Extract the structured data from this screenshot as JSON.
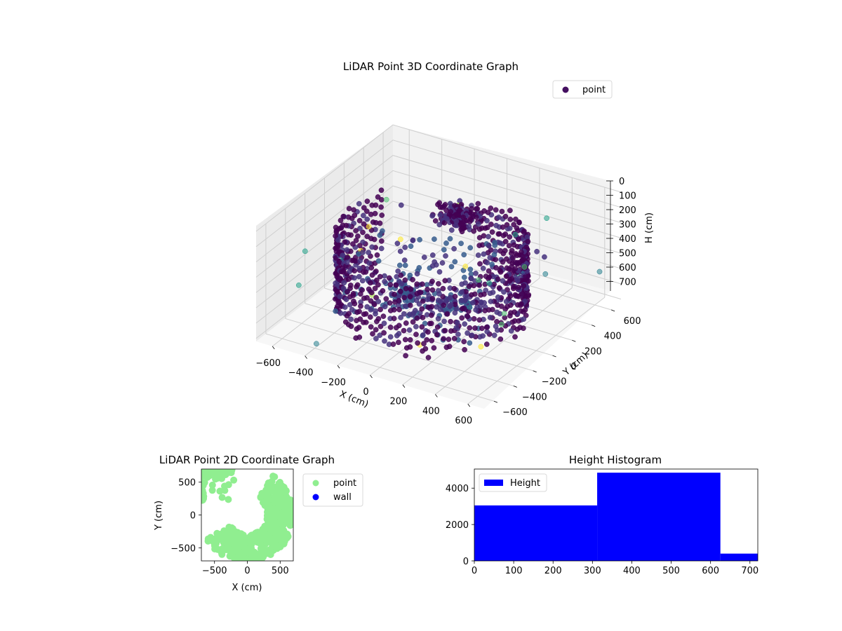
{
  "chart_data": [
    {
      "type": "scatter3d",
      "title": "LiDAR Point 3D Coordinate Graph",
      "xlabel": "X (cm)",
      "ylabel": "Y (cm)",
      "zlabel": "H (cm)",
      "xlim": [
        -700,
        700
      ],
      "ylim": [
        -700,
        700
      ],
      "zlim": [
        0,
        720
      ],
      "z_inverted": true,
      "xticks": [
        "−600",
        "−400",
        "−200",
        "0",
        "200",
        "400",
        "600"
      ],
      "yticks": [
        "−600",
        "−400",
        "−200",
        "0",
        "200",
        "400",
        "600"
      ],
      "zticks": [
        "0",
        "100",
        "200",
        "300",
        "400",
        "500",
        "600",
        "700"
      ],
      "legend": {
        "placement": "upper-right",
        "entries": [
          {
            "name": "point",
            "color": "#440f60"
          }
        ]
      },
      "colormap": "viridis",
      "grid": true
    },
    {
      "type": "scatter",
      "title": "LiDAR Point 2D Coordinate Graph",
      "xlabel": "X (cm)",
      "ylabel": "Y (cm)",
      "xlim": [
        -700,
        700
      ],
      "ylim": [
        -700,
        700
      ],
      "xticks": [
        "−500",
        "0",
        "500"
      ],
      "yticks": [
        "−500",
        "0",
        "500"
      ],
      "legend": {
        "placement": "outside-right",
        "entries": [
          {
            "name": "point",
            "color": "#90ee90"
          },
          {
            "name": "wall",
            "color": "#0000ff"
          }
        ]
      },
      "grid": false
    },
    {
      "type": "bar",
      "title": "Height Histogram",
      "series": [
        {
          "name": "Height",
          "color": "#0000ff"
        }
      ],
      "bins": [
        {
          "start": 0,
          "end": 312,
          "value": 3050
        },
        {
          "start": 312,
          "end": 625,
          "value": 4850
        },
        {
          "start": 625,
          "end": 720,
          "value": 400
        }
      ],
      "xlim": [
        0,
        720
      ],
      "ylim": [
        0,
        5050
      ],
      "xticks": [
        "0",
        "100",
        "200",
        "300",
        "400",
        "500",
        "600",
        "700"
      ],
      "yticks": [
        "0",
        "2000",
        "4000"
      ],
      "legend": {
        "placement": "upper-left"
      },
      "grid": false
    }
  ]
}
